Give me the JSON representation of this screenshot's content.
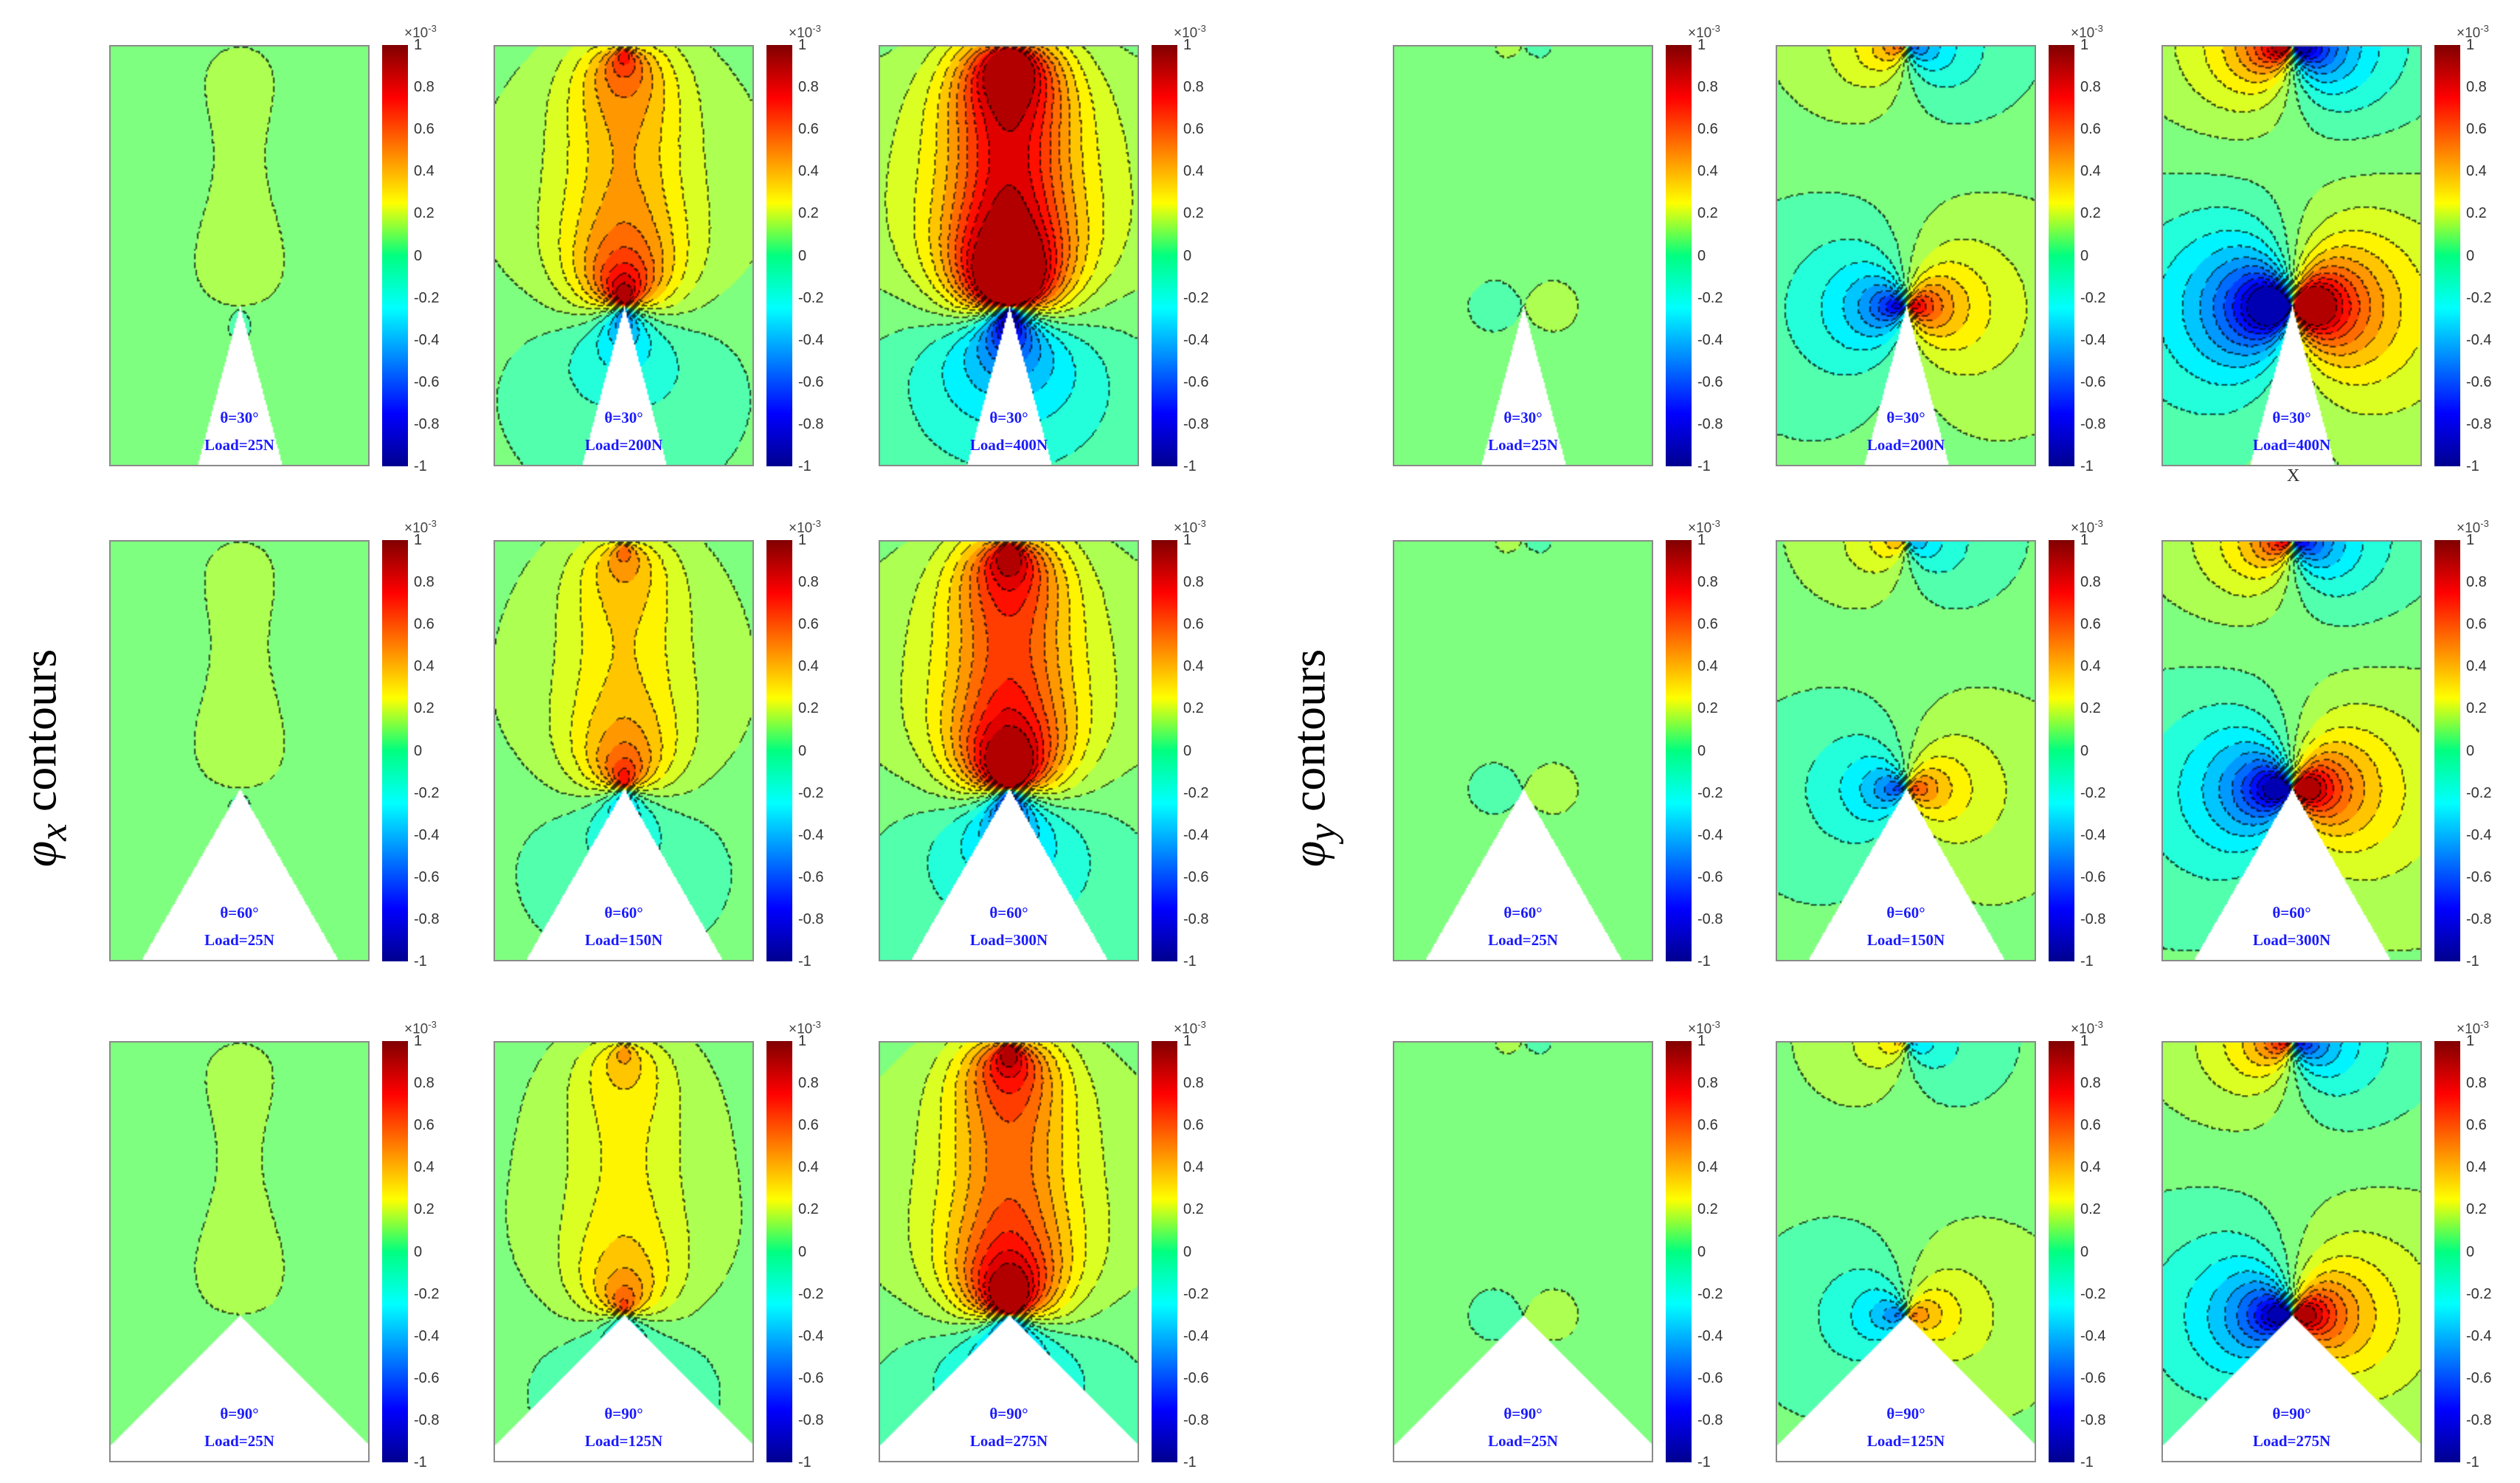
{
  "figure": {
    "left_label": {
      "symbol": "φ",
      "subscript": "x",
      "text": "contours"
    },
    "right_label": {
      "symbol": "φ",
      "subscript": "y",
      "text": "contours"
    },
    "stray_axis_label": "X"
  },
  "colorbar": {
    "multiplier": "×10",
    "exponent": "-3",
    "ticks": [
      "1",
      "0.8",
      "0.6",
      "0.4",
      "0.2",
      "0",
      "-0.2",
      "-0.4",
      "-0.6",
      "-0.8",
      "-1"
    ],
    "range": [
      -1,
      1
    ]
  },
  "chart_data": {
    "type": "heatmap",
    "title": "",
    "colormap": "jet",
    "value_range": [
      -0.001,
      0.001
    ],
    "panels": [
      {
        "field": "phi_x",
        "theta": "θ=30°",
        "load": "Load=25N",
        "theta_deg": 30,
        "load_n": 25
      },
      {
        "field": "phi_x",
        "theta": "θ=30°",
        "load": "Load=200N",
        "theta_deg": 30,
        "load_n": 200
      },
      {
        "field": "phi_x",
        "theta": "θ=30°",
        "load": "Load=400N",
        "theta_deg": 30,
        "load_n": 400
      },
      {
        "field": "phi_y",
        "theta": "θ=30°",
        "load": "Load=25N",
        "theta_deg": 30,
        "load_n": 25
      },
      {
        "field": "phi_y",
        "theta": "θ=30°",
        "load": "Load=200N",
        "theta_deg": 30,
        "load_n": 200
      },
      {
        "field": "phi_y",
        "theta": "θ=30°",
        "load": "Load=400N",
        "theta_deg": 30,
        "load_n": 400
      },
      {
        "field": "phi_x",
        "theta": "θ=60°",
        "load": "Load=25N",
        "theta_deg": 60,
        "load_n": 25
      },
      {
        "field": "phi_x",
        "theta": "θ=60°",
        "load": "Load=150N",
        "theta_deg": 60,
        "load_n": 150
      },
      {
        "field": "phi_x",
        "theta": "θ=60°",
        "load": "Load=300N",
        "theta_deg": 60,
        "load_n": 300
      },
      {
        "field": "phi_y",
        "theta": "θ=60°",
        "load": "Load=25N",
        "theta_deg": 60,
        "load_n": 25
      },
      {
        "field": "phi_y",
        "theta": "θ=60°",
        "load": "Load=150N",
        "theta_deg": 60,
        "load_n": 150
      },
      {
        "field": "phi_y",
        "theta": "θ=60°",
        "load": "Load=300N",
        "theta_deg": 60,
        "load_n": 300
      },
      {
        "field": "phi_x",
        "theta": "θ=90°",
        "load": "Load=25N",
        "theta_deg": 90,
        "load_n": 25
      },
      {
        "field": "phi_x",
        "theta": "θ=90°",
        "load": "Load=125N",
        "theta_deg": 90,
        "load_n": 125
      },
      {
        "field": "phi_x",
        "theta": "θ=90°",
        "load": "Load=275N",
        "theta_deg": 90,
        "load_n": 275
      },
      {
        "field": "phi_y",
        "theta": "θ=90°",
        "load": "Load=25N",
        "theta_deg": 90,
        "load_n": 25
      },
      {
        "field": "phi_y",
        "theta": "θ=90°",
        "load": "Load=125N",
        "theta_deg": 90,
        "load_n": 125
      },
      {
        "field": "phi_y",
        "theta": "θ=90°",
        "load": "Load=275N",
        "theta_deg": 90,
        "load_n": 275
      }
    ]
  }
}
